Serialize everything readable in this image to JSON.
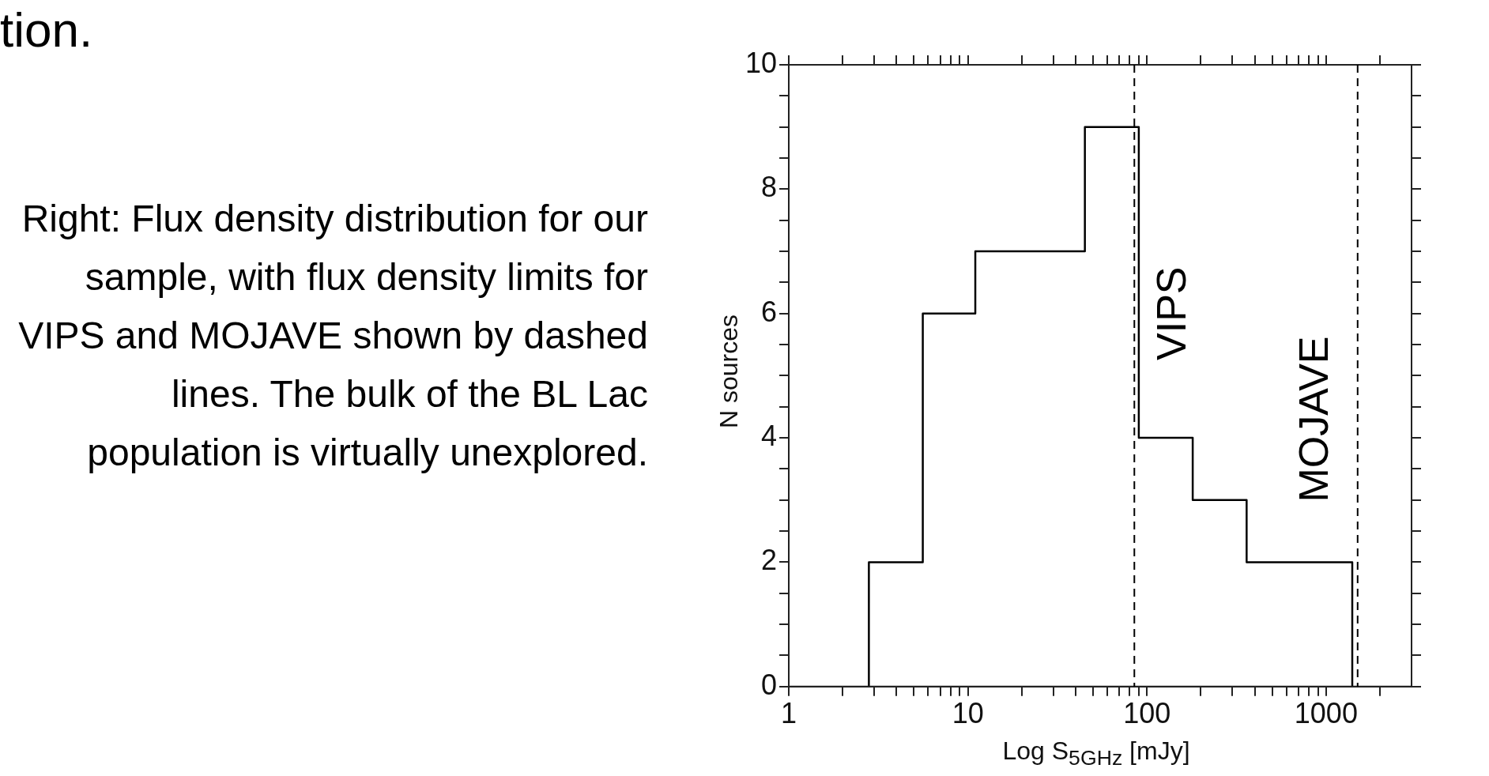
{
  "chart_data": {
    "type": "histogram",
    "title": "tion.",
    "xlabel": "Log S$_{5GHz}$ [mJy]",
    "ylabel": "N sources",
    "bins": [
      2.8,
      5.6,
      11,
      45,
      90,
      180,
      360,
      1400
    ],
    "values": [
      2,
      6,
      7,
      9,
      4,
      3,
      2
    ],
    "color": "#000000",
    "log": "x",
    "xlim": [
      1,
      3000
    ],
    "ylim": [
      0,
      10
    ],
    "xticks": [
      1,
      {
        "value": 2,
        "label": null
      },
      {
        "value": 3,
        "label": null
      },
      {
        "value": 4,
        "label": null
      },
      {
        "value": 5,
        "label": null
      },
      {
        "value": 6,
        "label": null
      },
      {
        "value": 7,
        "label": null
      },
      {
        "value": 8,
        "label": null
      },
      {
        "value": 9,
        "label": null
      },
      10,
      {
        "value": 20,
        "label": null
      },
      {
        "value": 30,
        "label": null
      },
      {
        "value": 40,
        "label": null
      },
      {
        "value": 50,
        "label": null
      },
      {
        "value": 60,
        "label": null
      },
      {
        "value": 70,
        "label": null
      },
      {
        "value": 80,
        "label": null
      },
      {
        "value": 90,
        "label": null
      },
      100,
      {
        "value": 200,
        "label": null
      },
      {
        "value": 300,
        "label": null
      },
      {
        "value": 400,
        "label": null
      },
      {
        "value": 500,
        "label": null
      },
      {
        "value": 600,
        "label": null
      },
      {
        "value": 700,
        "label": null
      },
      {
        "value": 800,
        "label": null
      },
      {
        "value": 900,
        "label": null
      },
      1000,
      {
        "value": 2000,
        "label": null
      }
    ],
    "yticks": [
      0,
      {
        "value": 0.5,
        "label": null
      },
      {
        "value": 1,
        "label": null
      },
      {
        "value": 1.5,
        "label": null
      },
      2,
      {
        "value": 2.5,
        "label": null
      },
      {
        "value": 3,
        "label": null
      },
      {
        "value": 3.5,
        "label": null
      },
      4,
      {
        "value": 4.5,
        "label": null
      },
      {
        "value": 5,
        "label": null
      },
      {
        "value": 5.5,
        "label": null
      },
      6,
      {
        "value": 6.5,
        "label": null
      },
      {
        "value": 7,
        "label": null
      },
      {
        "value": 7.5,
        "label": null
      },
      8,
      {
        "value": 8.5,
        "label": null
      },
      {
        "value": 9,
        "label": null
      },
      {
        "value": 9.5,
        "label": null
      },
      10
    ],
    "ref_lines": [
      {
        "axis": "x",
        "value": 85,
        "label": "VIPS",
        "line_style": "dashed"
      },
      {
        "axis": "x",
        "value": 1500,
        "label": "MOJAVE",
        "line_style": "dashed"
      }
    ],
    "annotations": [
      "Right: Flux density distribution for our sample, with flux density limits for VIPS and MOJAVE shown by dashed lines. The bulk of the BL Lac population is virtually unexplored."
    ],
    "grid": false,
    "legend": false
  }
}
